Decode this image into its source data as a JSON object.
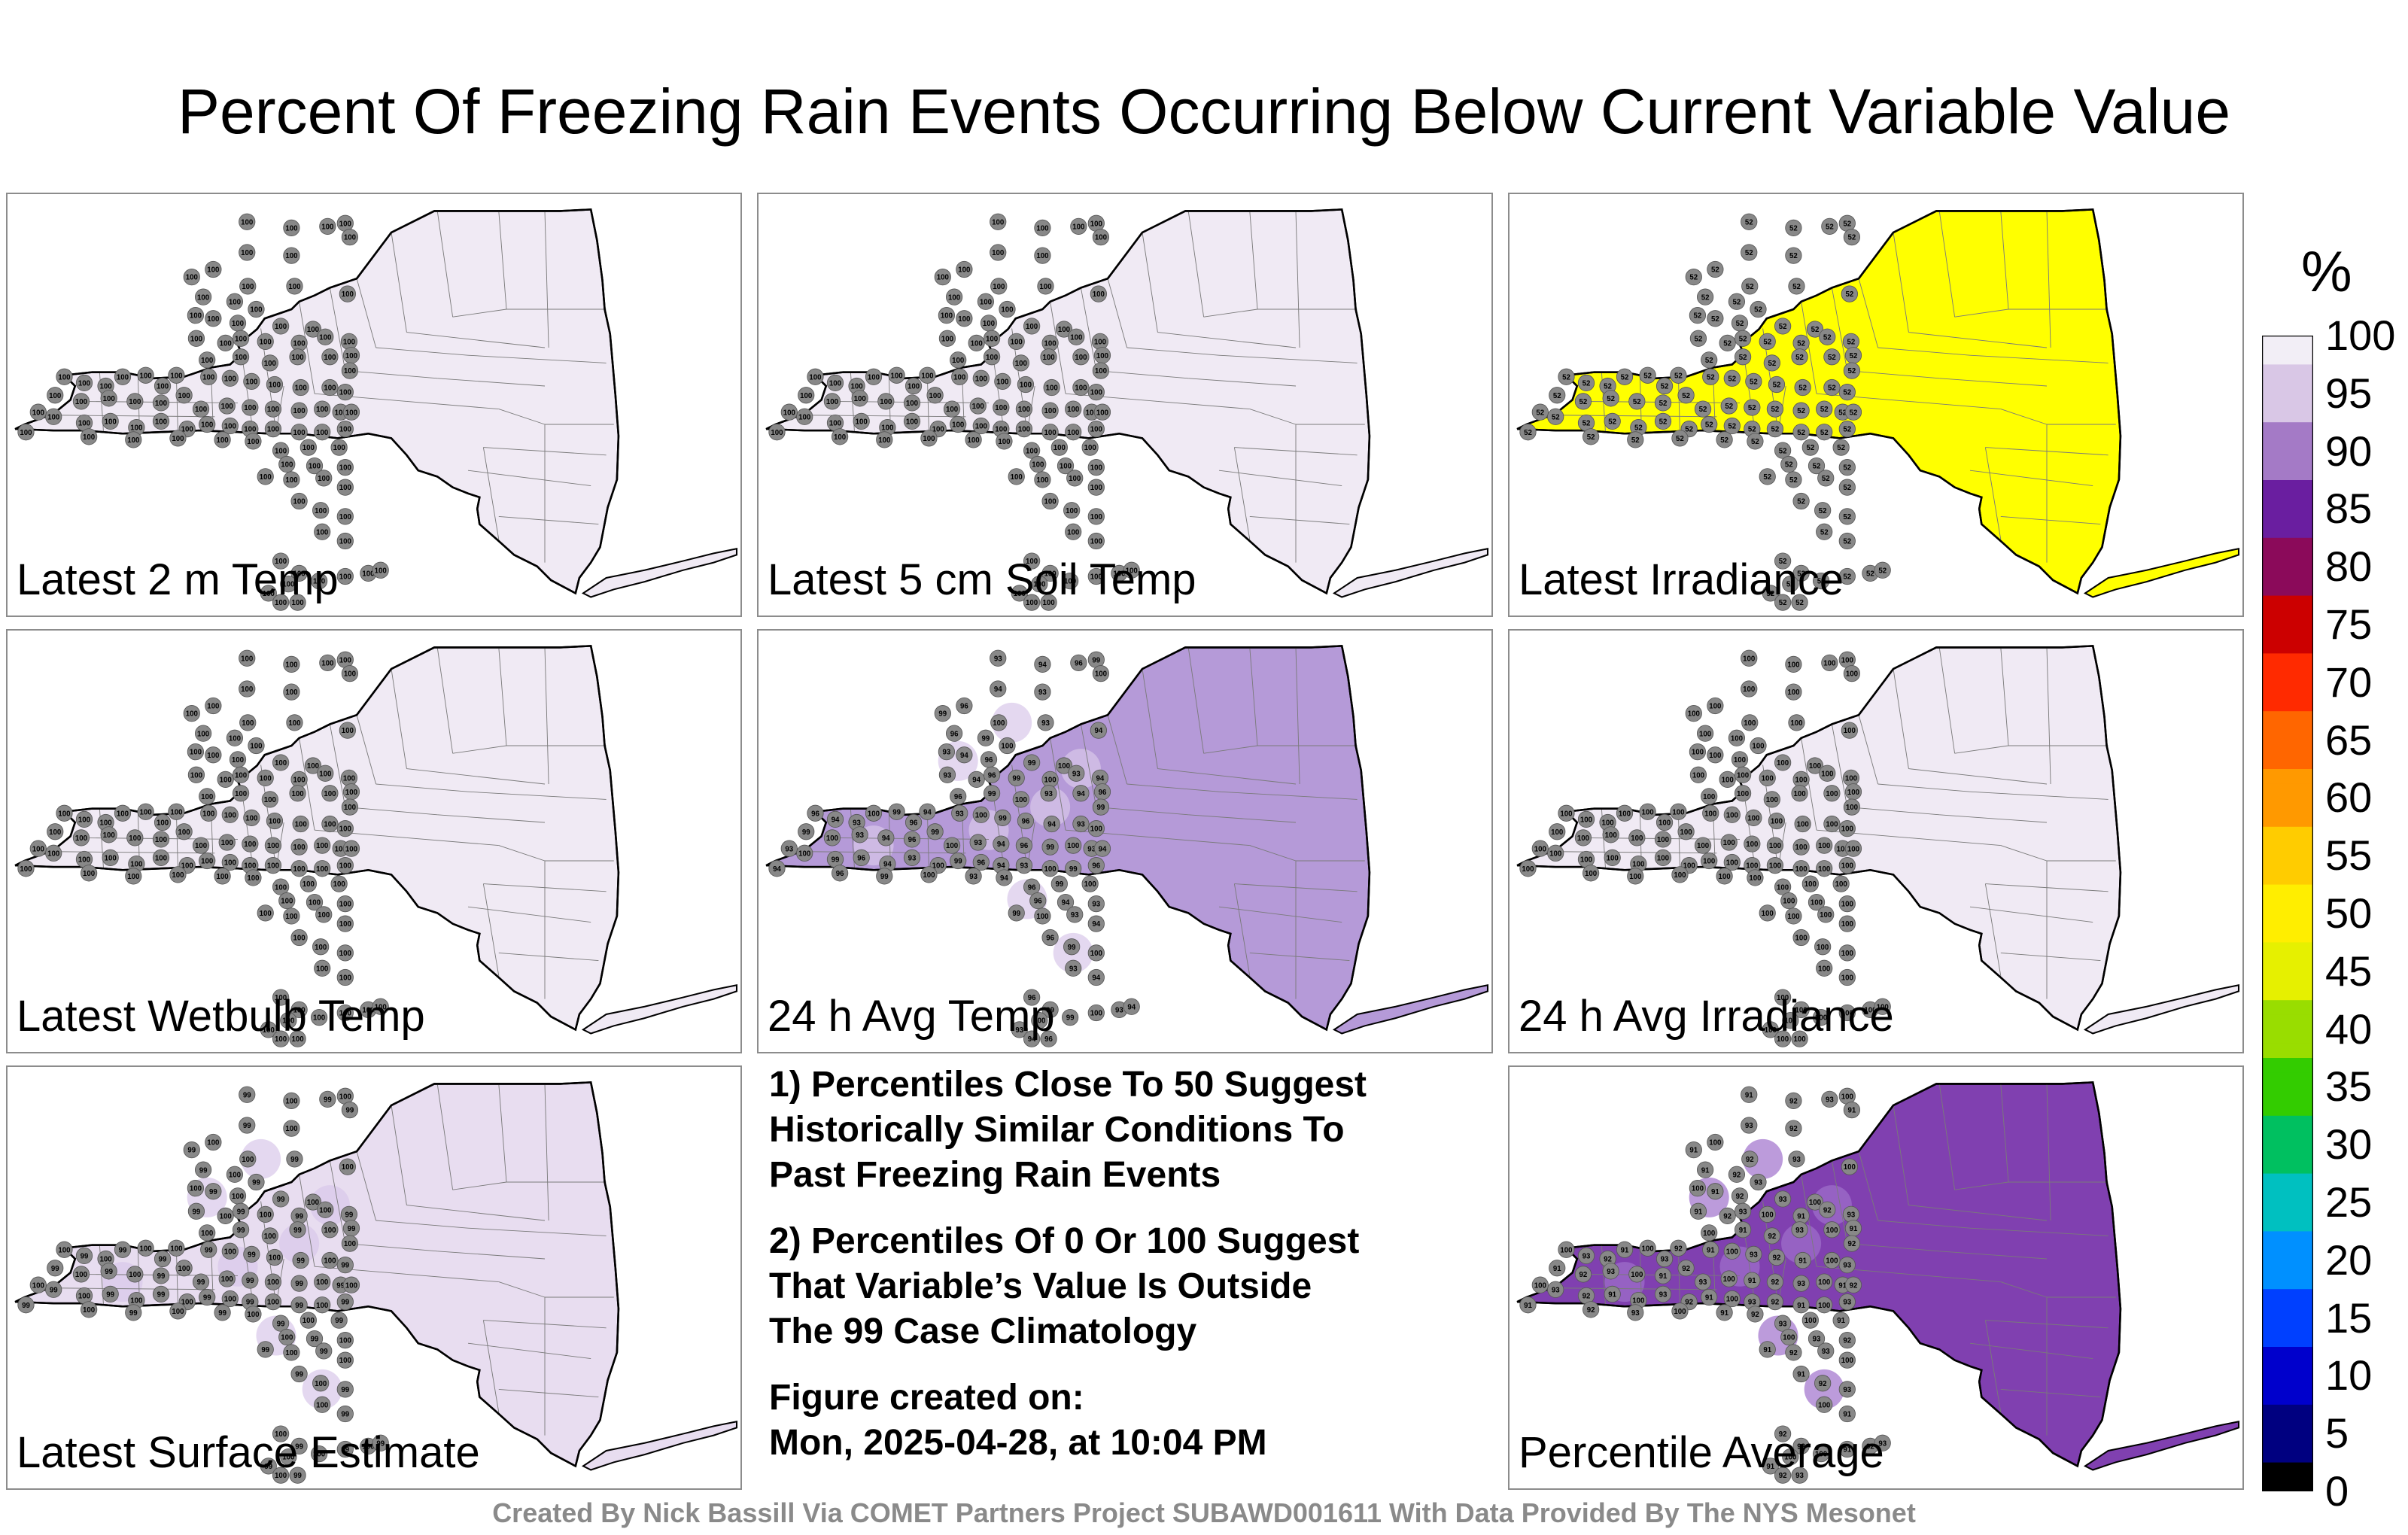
{
  "title": "Percent Of Freezing Rain Events Occurring Below Current Variable Value",
  "panels": [
    {
      "label": "Latest 2 m Temp",
      "fill_value": 100,
      "fill": "#f0eaf4",
      "station_value": "100"
    },
    {
      "label": "Latest 5 cm Soil Temp",
      "fill_value": 100,
      "fill": "#f0eaf4",
      "station_value": "100"
    },
    {
      "label": "Latest Irradiance",
      "fill_value": 52,
      "fill": "#ffff00",
      "station_value": "52"
    },
    {
      "label": "Latest Wetbulb Temp",
      "fill_value": 100,
      "fill": "#f0eaf4",
      "station_value": "100"
    },
    {
      "label": "24 h Avg Temp",
      "fill_value": 95,
      "fill": "#b59ad8",
      "station_value": "100",
      "mixed_values": [
        "93",
        "94",
        "96",
        "99",
        "100"
      ]
    },
    {
      "label": "24 h Avg Irradiance",
      "fill_value": 100,
      "fill": "#f0eaf4",
      "station_value": "100"
    },
    {
      "label": "Latest Surface Estimate",
      "fill_value": 99,
      "fill": "#e8ddf0",
      "station_value": "100",
      "mixed_values": [
        "99",
        "100"
      ]
    },
    {
      "label": "Percentile Average",
      "fill_value": 92,
      "fill": "#8040b0",
      "station_value": "93",
      "mixed_values": [
        "91",
        "92",
        "93",
        "100"
      ]
    }
  ],
  "notes": {
    "note1": [
      "1) Percentiles Close To 50 Suggest",
      "Historically Similar Conditions To",
      "Past Freezing Rain Events"
    ],
    "note2": [
      "2) Percentiles Of 0 Or 100 Suggest",
      "That Variable’s Value Is Outside",
      "The 99 Case Climatology"
    ],
    "created": [
      "Figure created on:",
      "Mon, 2025-04-28, at 10:04 PM"
    ]
  },
  "credit": "Created By Nick Bassill Via COMET Partners Project SUBAWD001611 With Data Provided By The NYS Mesonet",
  "colorbar": {
    "unit": "%",
    "ticks": [
      "100",
      "95",
      "90",
      "85",
      "80",
      "75",
      "70",
      "65",
      "60",
      "55",
      "50",
      "45",
      "40",
      "35",
      "30",
      "25",
      "20",
      "15",
      "10",
      "5",
      "0"
    ],
    "stops": [
      "#f2eef6",
      "#d9c7e6",
      "#a47ac6",
      "#6a1ea0",
      "#8b0a5a",
      "#cc0000",
      "#ff2a00",
      "#ff6600",
      "#ff9900",
      "#ffcc00",
      "#ffee00",
      "#e6f000",
      "#99dd00",
      "#33cc00",
      "#00c060",
      "#00c0c0",
      "#0090ff",
      "#0040ff",
      "#0000cc",
      "#000080",
      "#000000"
    ]
  }
}
